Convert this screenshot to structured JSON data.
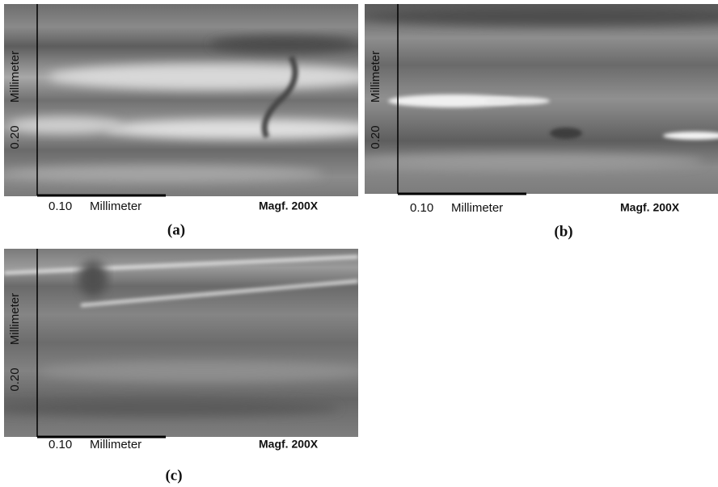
{
  "panels": [
    {
      "label": "(a)",
      "x_scale": "0.10",
      "x_unit": "Millimeter",
      "y_scale": "0.20",
      "y_unit": "Millimeter",
      "magnification": "Magf. 200X"
    },
    {
      "label": "(b)",
      "x_scale": "0.10",
      "x_unit": "Millimeter",
      "y_scale": "0.20",
      "y_unit": "Millimeter",
      "magnification": "Magf. 200X"
    },
    {
      "label": "(c)",
      "x_scale": "0.10",
      "x_unit": "Millimeter",
      "y_scale": "0.20",
      "y_unit": "Millimeter",
      "magnification": "Magf. 200X"
    }
  ]
}
